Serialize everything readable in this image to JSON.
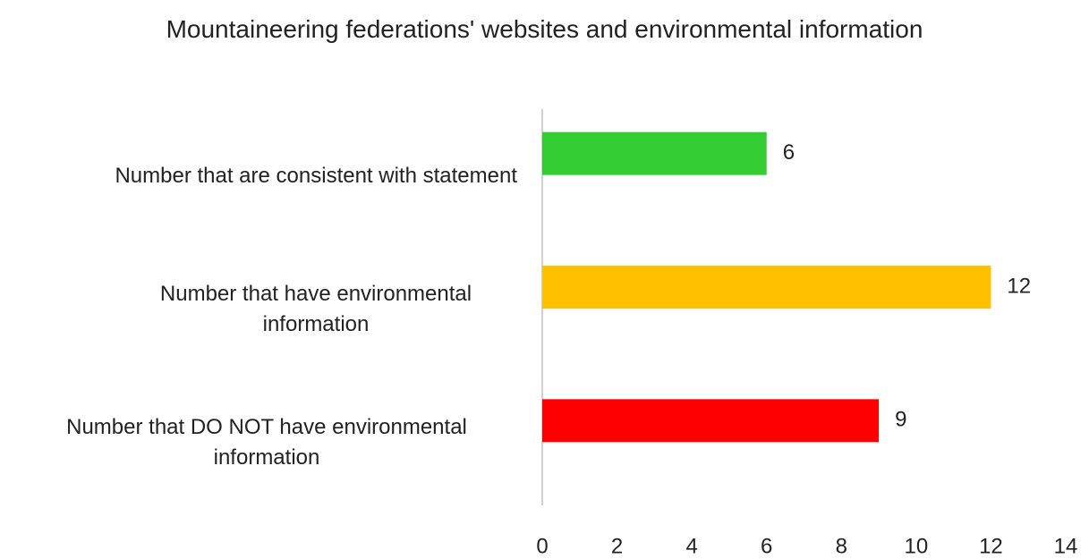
{
  "chart_data": {
    "type": "barh",
    "title": "Mountaineering federations' websites and environmental information",
    "categories": [
      "Number that are consistent with statement",
      "Number that have environmental information",
      "Number that DO NOT have environmental information"
    ],
    "values": [
      6,
      12,
      9
    ],
    "colors": [
      "#33cc33",
      "#ffc000",
      "#ff0000"
    ],
    "xlim": [
      0,
      14
    ],
    "xticks": [
      0,
      2,
      4,
      6,
      8,
      10,
      12,
      14
    ],
    "grid": false
  }
}
